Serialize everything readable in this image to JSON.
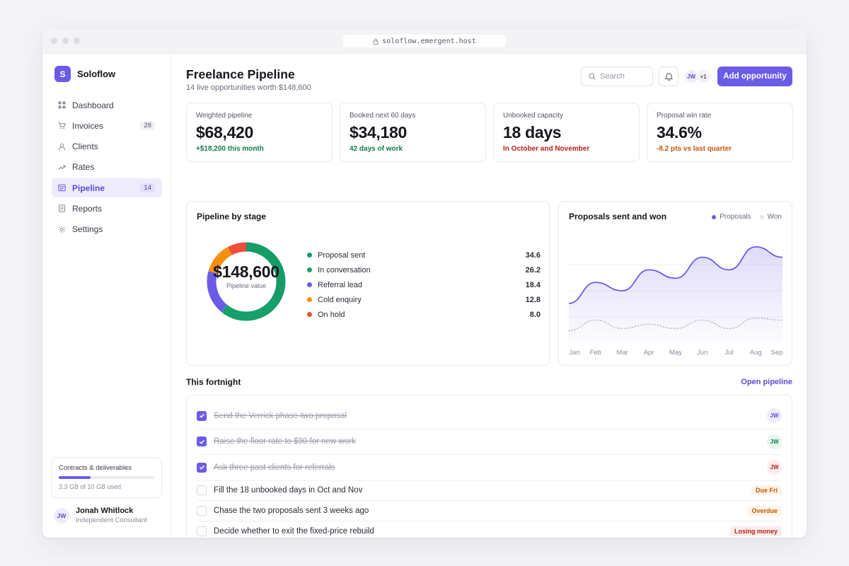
{
  "browser": {
    "url": "soloflow.emergent.host"
  },
  "brand": {
    "initial": "S",
    "name": "Soloflow"
  },
  "nav": [
    {
      "label": "Dashboard",
      "icon": "grid-icon",
      "count": ""
    },
    {
      "label": "Invoices",
      "icon": "cart-icon",
      "count": "28"
    },
    {
      "label": "Clients",
      "icon": "user-icon",
      "count": ""
    },
    {
      "label": "Rates",
      "icon": "trend-up-icon",
      "count": ""
    },
    {
      "label": "Pipeline",
      "icon": "pipeline-icon",
      "count": "14",
      "active": true
    },
    {
      "label": "Reports",
      "icon": "document-icon",
      "count": ""
    },
    {
      "label": "Settings",
      "icon": "gear-icon",
      "count": ""
    }
  ],
  "storage": {
    "title": "Contracts & deliverables",
    "used_text": "3.3 GB of 10 GB used",
    "used_fraction": 0.33
  },
  "user": {
    "initials": "JW",
    "name": "Jonah Whitlock",
    "role": "Independent Consultant"
  },
  "header": {
    "title": "Freelance Pipeline",
    "subtitle": "14 live opportunities worth $148,600",
    "search_placeholder": "Search",
    "avatar_initials": "JW",
    "avatar_more": "+1",
    "add_button": "Add opportunity"
  },
  "kpis": [
    {
      "label": "Weighted pipeline",
      "value": "$68,420",
      "delta": "+$18,200 this month",
      "color": "#127a4c"
    },
    {
      "label": "Booked next 60 days",
      "value": "$34,180",
      "delta": "42 days of work",
      "color": "#127a4c"
    },
    {
      "label": "Unbooked capacity",
      "value": "18 days",
      "delta": "In October and November",
      "color": "#b42318"
    },
    {
      "label": "Proposal win rate",
      "value": "34.6%",
      "delta": "-8.2 pts vs last quarter",
      "color": "#c2570c"
    }
  ],
  "stage_card": {
    "title": "Pipeline by stage",
    "center_value": "$148,600",
    "center_label": "Pipeline value",
    "stages": [
      {
        "name": "Proposal sent",
        "value": 34.6,
        "label": "34.6",
        "color": "#169c67"
      },
      {
        "name": "In conversation",
        "value": 26.2,
        "label": "26.2",
        "color": "#16a06a"
      },
      {
        "name": "Referral lead",
        "value": 18.4,
        "label": "18.4",
        "color": "#6b5ce7"
      },
      {
        "name": "Cold enquiry",
        "value": 12.8,
        "label": "12.8",
        "color": "#f39012"
      },
      {
        "name": "On hold",
        "value": 8.0,
        "label": "8.0",
        "color": "#ef4f3a"
      }
    ]
  },
  "chart_data": {
    "type": "area",
    "title": "Proposals sent and won",
    "categories": [
      "Jan",
      "Feb",
      "Mar",
      "Apr",
      "May",
      "Jun",
      "Jul",
      "Aug",
      "Sep"
    ],
    "ylim": [
      0,
      100
    ],
    "grid": true,
    "legend_position": "top-right",
    "series": [
      {
        "name": "Proposals",
        "color": "#6b5ce7",
        "style": "solid-area",
        "values": [
          38,
          58,
          50,
          70,
          62,
          82,
          70,
          92,
          82
        ]
      },
      {
        "name": "Won",
        "color": "#8b8ba0",
        "style": "dotted",
        "values": [
          12,
          22,
          14,
          18,
          14,
          22,
          14,
          24,
          22
        ]
      }
    ]
  },
  "tasks_section": {
    "title": "This fortnight",
    "link": "Open pipeline"
  },
  "tasks": [
    {
      "text": "Send the Verrick phase-two proposal",
      "done": true,
      "badge": "JW",
      "badge_type": "avatar",
      "bg": "#eeecfc",
      "fg": "#5b4bd6"
    },
    {
      "text": "Raise the floor rate to $90 for new work",
      "done": true,
      "badge": "JW",
      "badge_type": "avatar",
      "bg": "#e6f6ee",
      "fg": "#127a4c"
    },
    {
      "text": "Ask three past clients for referrals",
      "done": true,
      "badge": "JW",
      "badge_type": "avatar",
      "bg": "#fdecec",
      "fg": "#b42318"
    },
    {
      "text": "Fill the 18 unbooked days in Oct and Nov",
      "done": false,
      "badge": "Due Fri",
      "badge_type": "tag",
      "bg": "#fff3e6",
      "fg": "#c2570c"
    },
    {
      "text": "Chase the two proposals sent 3 weeks ago",
      "done": false,
      "badge": "Overdue",
      "badge_type": "tag",
      "bg": "#fff3e6",
      "fg": "#c2570c"
    },
    {
      "text": "Decide whether to exit the fixed-price rebuild",
      "done": false,
      "badge": "Losing money",
      "badge_type": "tag",
      "bg": "#fdecec",
      "fg": "#b42318"
    }
  ]
}
